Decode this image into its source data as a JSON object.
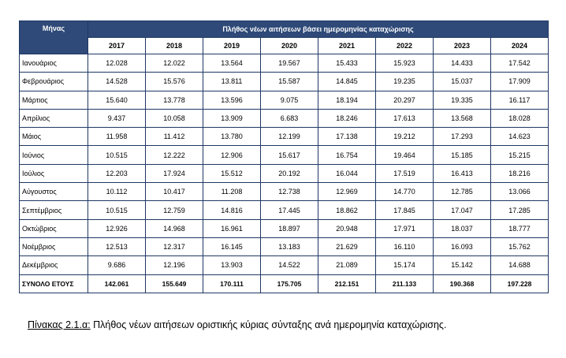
{
  "table": {
    "month_header": "Μήνας",
    "group_header": "Πλήθος νέων αιτήσεων βάσει ημερομηνίας καταχώρισης",
    "years": [
      "2017",
      "2018",
      "2019",
      "2020",
      "2021",
      "2022",
      "2023",
      "2024"
    ],
    "rows": [
      {
        "month": "Ιανουάριος",
        "values": [
          "12.028",
          "12.022",
          "13.564",
          "19.567",
          "15.433",
          "15.923",
          "14.433",
          "17.542"
        ]
      },
      {
        "month": "Φεβρουάριος",
        "values": [
          "14.528",
          "15.576",
          "13.811",
          "15.587",
          "14.845",
          "19.235",
          "15.037",
          "17.909"
        ]
      },
      {
        "month": "Μάρτιος",
        "values": [
          "15.640",
          "13.778",
          "13.596",
          "9.075",
          "18.194",
          "20.297",
          "19.335",
          "16.117"
        ]
      },
      {
        "month": "Απρίλιος",
        "values": [
          "9.437",
          "10.058",
          "13.909",
          "6.683",
          "18.246",
          "17.613",
          "13.568",
          "18.028"
        ]
      },
      {
        "month": "Μάιος",
        "values": [
          "11.958",
          "11.412",
          "13.780",
          "12.199",
          "17.138",
          "19.212",
          "17.293",
          "14.623"
        ]
      },
      {
        "month": "Ιούνιος",
        "values": [
          "10.515",
          "12.222",
          "12.906",
          "15.617",
          "16.754",
          "19.464",
          "15.185",
          "15.215"
        ]
      },
      {
        "month": "Ιούλιος",
        "values": [
          "12.203",
          "17.924",
          "15.512",
          "20.192",
          "16.044",
          "17.519",
          "16.413",
          "18.216"
        ]
      },
      {
        "month": "Αύγουστος",
        "values": [
          "10.112",
          "10.417",
          "11.208",
          "12.738",
          "12.969",
          "14.770",
          "12.785",
          "13.066"
        ]
      },
      {
        "month": "Σεπτέμβριος",
        "values": [
          "10.515",
          "12.759",
          "14.816",
          "17.445",
          "18.862",
          "17.845",
          "17.047",
          "17.285"
        ]
      },
      {
        "month": "Οκτώβριος",
        "values": [
          "12.926",
          "14.968",
          "16.961",
          "18.897",
          "20.948",
          "17.971",
          "18.037",
          "18.777"
        ]
      },
      {
        "month": "Νοέμβριος",
        "values": [
          "12.513",
          "12.317",
          "16.145",
          "13.183",
          "21.629",
          "16.110",
          "16.093",
          "15.762"
        ]
      },
      {
        "month": "Δεκέμβριος",
        "values": [
          "9.686",
          "12.196",
          "13.903",
          "14.522",
          "21.089",
          "15.174",
          "15.142",
          "14.688"
        ]
      }
    ],
    "total": {
      "label": "ΣΥΝΟΛΟ ΕΤΟΥΣ",
      "values": [
        "142.061",
        "155.649",
        "170.111",
        "175.705",
        "212.151",
        "211.133",
        "190.368",
        "197.228"
      ]
    }
  },
  "caption": {
    "label": "Πίνακας 2.1.α:",
    "text": " Πλήθος νέων αιτήσεων οριστικής κύριας σύνταξης ανά ημερομηνία καταχώρισης."
  }
}
